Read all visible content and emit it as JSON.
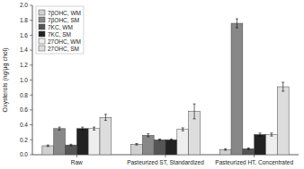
{
  "chart_data": {
    "type": "bar",
    "categories": [
      "Raw",
      "Pasteurized ST, Standardized",
      "Pasteurized HT, Concentrated"
    ],
    "series": [
      {
        "name": "7βOHC, WM",
        "color": "#d0d0d0",
        "values": [
          0.12,
          0.14,
          0.07
        ],
        "errors": [
          0.01,
          0.01,
          0.01
        ]
      },
      {
        "name": "7βOHC, SM",
        "color": "#888888",
        "values": [
          0.35,
          0.26,
          1.76
        ],
        "errors": [
          0.02,
          0.02,
          0.06
        ]
      },
      {
        "name": "7KC, WM",
        "color": "#555555",
        "values": [
          0.13,
          0.2,
          0.08
        ],
        "errors": [
          0.01,
          0.01,
          0.01
        ]
      },
      {
        "name": "7KC, SM",
        "color": "#222222",
        "values": [
          0.35,
          0.2,
          0.27
        ],
        "errors": [
          0.02,
          0.01,
          0.02
        ]
      },
      {
        "name": "27OHC, WM",
        "color": "#eeeeee",
        "values": [
          0.35,
          0.34,
          0.27
        ],
        "errors": [
          0.02,
          0.02,
          0.02
        ]
      },
      {
        "name": "27OHC, SM",
        "color": "#dddddd",
        "values": [
          0.5,
          0.58,
          0.91
        ],
        "errors": [
          0.04,
          0.1,
          0.06
        ]
      }
    ],
    "ylabel": "Oxysterols (ng/μg chol)",
    "ylim": [
      0.0,
      2.0
    ],
    "yticks": [
      {
        "value": 0.0,
        "label": "0.0"
      },
      0.2,
      0.4,
      0.6,
      0.8,
      {
        "value": 1.0,
        "label": "1.0"
      },
      1.2,
      1.4,
      1.6,
      1.8,
      {
        "value": 2.0,
        "label": "2.0"
      }
    ],
    "grid": false,
    "legend": "upper left"
  }
}
